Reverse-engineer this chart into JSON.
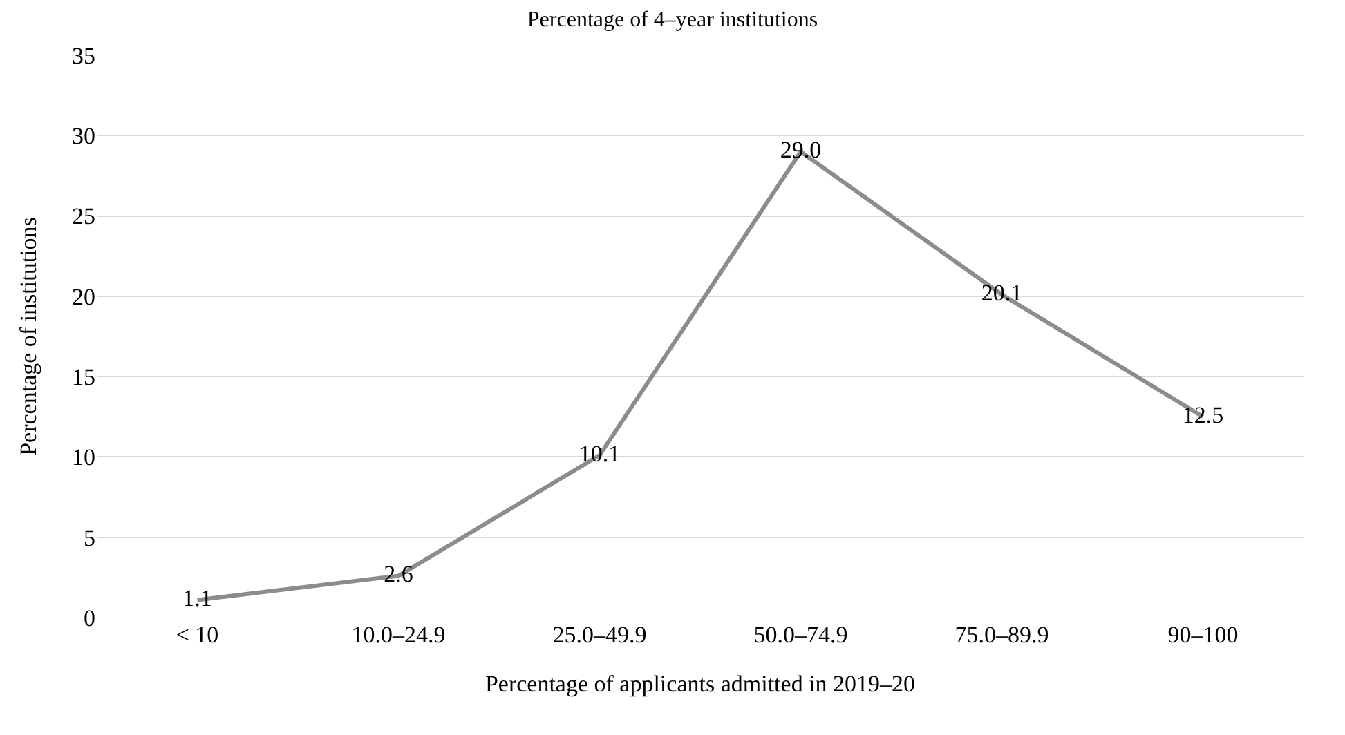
{
  "chart_data": {
    "type": "line",
    "title": "Percentage of 4‒year institutions",
    "xlabel": "Percentage of applicants admitted in 2019‒20",
    "ylabel": "Percentage of institutions",
    "categories": [
      "< 10",
      "10.0‒24.9",
      "25.0‒49.9",
      "50.0‒74.9",
      "75.0‒89.9",
      "90‒100"
    ],
    "series": [
      {
        "color": "#8c8c8c",
        "values": [
          1.1,
          2.6,
          10.1,
          29.0,
          20.1,
          12.5
        ],
        "value_labels": [
          "1.1",
          "2.6",
          "10.1",
          "29.0",
          "20.1",
          "12.5"
        ]
      }
    ],
    "ylim": [
      0,
      35
    ],
    "yticks": [
      0,
      5,
      10,
      15,
      20,
      25,
      30,
      35
    ],
    "grid": "y",
    "marker": "none",
    "line_style": "solid"
  }
}
